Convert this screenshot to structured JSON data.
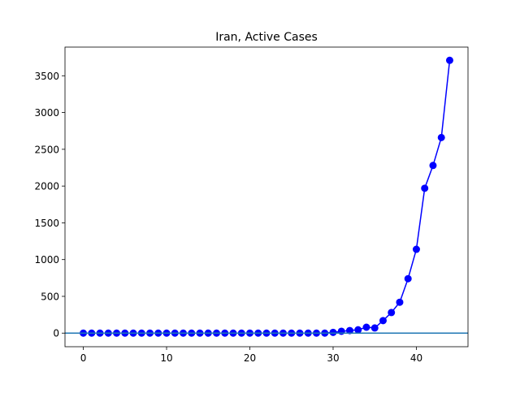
{
  "chart_data": {
    "type": "line",
    "title": "Iran, Active Cases",
    "xlabel": "",
    "ylabel": "",
    "xlim": [
      -2.2,
      46.2
    ],
    "ylim": [
      -185,
      3890
    ],
    "xticks": [
      0,
      10,
      20,
      30,
      40
    ],
    "yticks": [
      0,
      500,
      1000,
      1500,
      2000,
      2500,
      3000,
      3500
    ],
    "grid": false,
    "legend": "none",
    "baseline": {
      "y": 0,
      "color": "#1f77b4"
    },
    "series": [
      {
        "color": "#0000ff",
        "marker": "circle",
        "x": [
          0,
          1,
          2,
          3,
          4,
          5,
          6,
          7,
          8,
          9,
          10,
          11,
          12,
          13,
          14,
          15,
          16,
          17,
          18,
          19,
          20,
          21,
          22,
          23,
          24,
          25,
          26,
          27,
          28,
          29,
          30,
          31,
          32,
          33,
          34,
          35,
          36,
          37,
          38,
          39,
          40,
          41,
          42,
          43,
          44
        ],
        "y": [
          0,
          0,
          0,
          0,
          0,
          0,
          0,
          0,
          0,
          0,
          0,
          0,
          0,
          0,
          0,
          0,
          0,
          0,
          0,
          0,
          0,
          0,
          0,
          0,
          0,
          0,
          0,
          0,
          0,
          0,
          10,
          25,
          35,
          45,
          80,
          70,
          170,
          280,
          420,
          740,
          1140,
          1970,
          2280,
          2660,
          3710
        ]
      }
    ]
  }
}
